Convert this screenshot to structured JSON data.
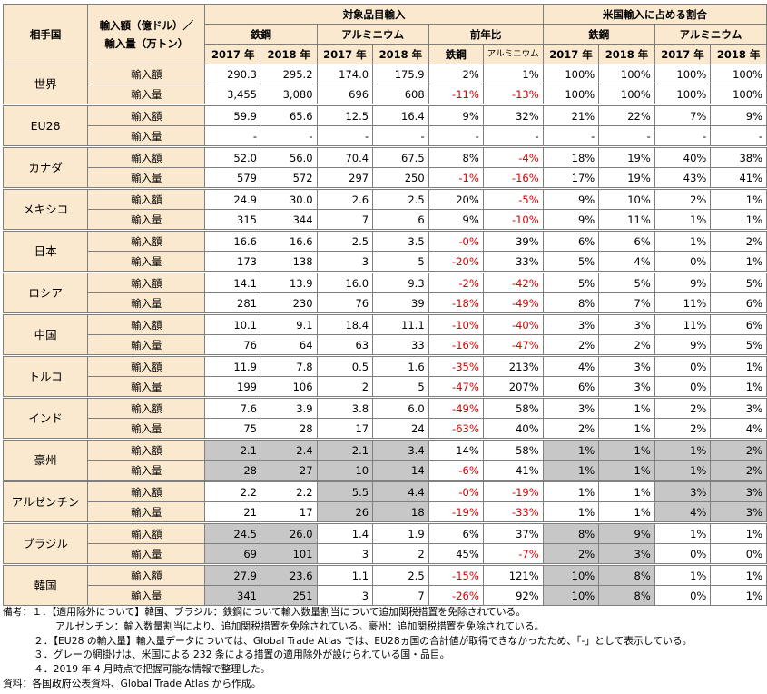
{
  "header": {
    "partner": "相手国",
    "metric": "輸入額（億ドル）／輸入量（万トン）",
    "group_imports": "対象品目輸入",
    "group_share": "米国輸入に占める割合",
    "steel": "鉄鋼",
    "aluminum": "アルミニウム",
    "yoy": "前年比",
    "yoy_steel": "鉄鋼",
    "yoy_aluminum": "アルミニウム",
    "y2017": "2017 年",
    "y2018": "2018 年"
  },
  "metrics": {
    "value": "輸入額",
    "volume": "輸入量"
  },
  "rows": [
    {
      "country": "世界",
      "value": [
        "290.3",
        "295.2",
        "174.0",
        "175.9",
        "2%",
        "1%",
        "100%",
        "100%",
        "100%",
        "100%"
      ],
      "volume": [
        "3,455",
        "3,080",
        "696",
        "608",
        "-11%",
        "-13%",
        "100%",
        "100%",
        "100%",
        "100%"
      ]
    },
    {
      "country": "EU28",
      "value": [
        "59.9",
        "65.6",
        "12.5",
        "16.4",
        "9%",
        "32%",
        "21%",
        "22%",
        "7%",
        "9%"
      ],
      "volume": [
        "-",
        "-",
        "-",
        "-",
        "-",
        "-",
        "-",
        "-",
        "-",
        "-"
      ]
    },
    {
      "country": "カナダ",
      "value": [
        "52.0",
        "56.0",
        "70.4",
        "67.5",
        "8%",
        "-4%",
        "18%",
        "19%",
        "40%",
        "38%"
      ],
      "volume": [
        "579",
        "572",
        "297",
        "250",
        "-1%",
        "-16%",
        "17%",
        "19%",
        "43%",
        "41%"
      ]
    },
    {
      "country": "メキシコ",
      "value": [
        "24.9",
        "30.0",
        "2.6",
        "2.5",
        "20%",
        "-5%",
        "9%",
        "10%",
        "2%",
        "1%"
      ],
      "volume": [
        "315",
        "344",
        "7",
        "6",
        "9%",
        "-10%",
        "9%",
        "11%",
        "1%",
        "1%"
      ]
    },
    {
      "country": "日本",
      "value": [
        "16.6",
        "16.6",
        "2.5",
        "3.5",
        "-0%",
        "39%",
        "6%",
        "6%",
        "1%",
        "2%"
      ],
      "volume": [
        "173",
        "138",
        "3",
        "5",
        "-20%",
        "33%",
        "5%",
        "4%",
        "0%",
        "1%"
      ]
    },
    {
      "country": "ロシア",
      "value": [
        "14.1",
        "13.9",
        "16.0",
        "9.3",
        "-2%",
        "-42%",
        "5%",
        "5%",
        "9%",
        "5%"
      ],
      "volume": [
        "281",
        "230",
        "76",
        "39",
        "-18%",
        "-49%",
        "8%",
        "7%",
        "11%",
        "6%"
      ]
    },
    {
      "country": "中国",
      "value": [
        "10.1",
        "9.1",
        "18.4",
        "11.1",
        "-10%",
        "-40%",
        "3%",
        "3%",
        "11%",
        "6%"
      ],
      "volume": [
        "76",
        "64",
        "63",
        "33",
        "-16%",
        "-47%",
        "2%",
        "2%",
        "9%",
        "5%"
      ]
    },
    {
      "country": "トルコ",
      "value": [
        "11.9",
        "7.8",
        "0.5",
        "1.6",
        "-35%",
        "213%",
        "4%",
        "3%",
        "0%",
        "1%"
      ],
      "volume": [
        "199",
        "106",
        "2",
        "5",
        "-47%",
        "207%",
        "6%",
        "3%",
        "0%",
        "1%"
      ]
    },
    {
      "country": "インド",
      "value": [
        "7.6",
        "3.9",
        "3.8",
        "6.0",
        "-49%",
        "58%",
        "3%",
        "1%",
        "2%",
        "3%"
      ],
      "volume": [
        "75",
        "28",
        "17",
        "24",
        "-63%",
        "40%",
        "2%",
        "1%",
        "2%",
        "4%"
      ]
    },
    {
      "country": "豪州",
      "value": [
        "2.1",
        "2.4",
        "2.1",
        "3.4",
        "14%",
        "58%",
        "1%",
        "1%",
        "1%",
        "2%"
      ],
      "volume": [
        "28",
        "27",
        "10",
        "14",
        "-6%",
        "41%",
        "1%",
        "1%",
        "1%",
        "2%"
      ]
    },
    {
      "country": "アルゼンチン",
      "value": [
        "2.2",
        "2.2",
        "5.5",
        "4.4",
        "-0%",
        "-19%",
        "1%",
        "1%",
        "3%",
        "3%"
      ],
      "volume": [
        "21",
        "17",
        "26",
        "18",
        "-19%",
        "-33%",
        "1%",
        "1%",
        "4%",
        "3%"
      ]
    },
    {
      "country": "ブラジル",
      "value": [
        "24.5",
        "26.0",
        "1.4",
        "1.9",
        "6%",
        "37%",
        "8%",
        "9%",
        "1%",
        "1%"
      ],
      "volume": [
        "69",
        "101",
        "3",
        "2",
        "45%",
        "-7%",
        "2%",
        "3%",
        "0%",
        "0%"
      ]
    },
    {
      "country": "韓国",
      "value": [
        "27.9",
        "23.6",
        "1.1",
        "2.5",
        "-15%",
        "121%",
        "10%",
        "8%",
        "1%",
        "1%"
      ],
      "volume": [
        "341",
        "251",
        "3",
        "7",
        "-26%",
        "92%",
        "10%",
        "8%",
        "0%",
        "1%"
      ]
    }
  ],
  "grey_cells": {
    "豪州": {
      "value": [
        0,
        1,
        2,
        3,
        6,
        7,
        8,
        9
      ],
      "volume": [
        0,
        1,
        2,
        3,
        6,
        7,
        8,
        9
      ]
    },
    "アルゼンチン": {
      "value": [
        2,
        3,
        8,
        9
      ],
      "volume": [
        2,
        3,
        8,
        9
      ]
    },
    "ブラジル": {
      "value": [
        0,
        1,
        6,
        7
      ],
      "volume": [
        0,
        1,
        6,
        7
      ]
    },
    "韓国": {
      "value": [
        0,
        1,
        6,
        7
      ],
      "volume": [
        0,
        1,
        6,
        7
      ]
    }
  },
  "notes": {
    "n1a": "備考：１．【適用除外について】韓国、ブラジル：鉄鋼について輸入数量割当について追加関税措置を免除されている。",
    "n1b": "アルゼンチン：輸入数量割当により、追加関税措置を免除されている。豪州：追加関税措置を免除されている。",
    "n2": "２．【EU28 の輸入量】輸入量データについては、Global Trade Atlas では、EU28ヵ国の合計値が取得できなかったため、「-」として表示している。",
    "n3": "３．グレーの網掛けは、米国による 232 条による措置の適用除外が設けられている国・品目。",
    "n4": "４．2019 年 4 月時点で把握可能な情報で整理した。",
    "source": "資料：各国政府公表資料、Global Trade Atlas から作成。"
  }
}
